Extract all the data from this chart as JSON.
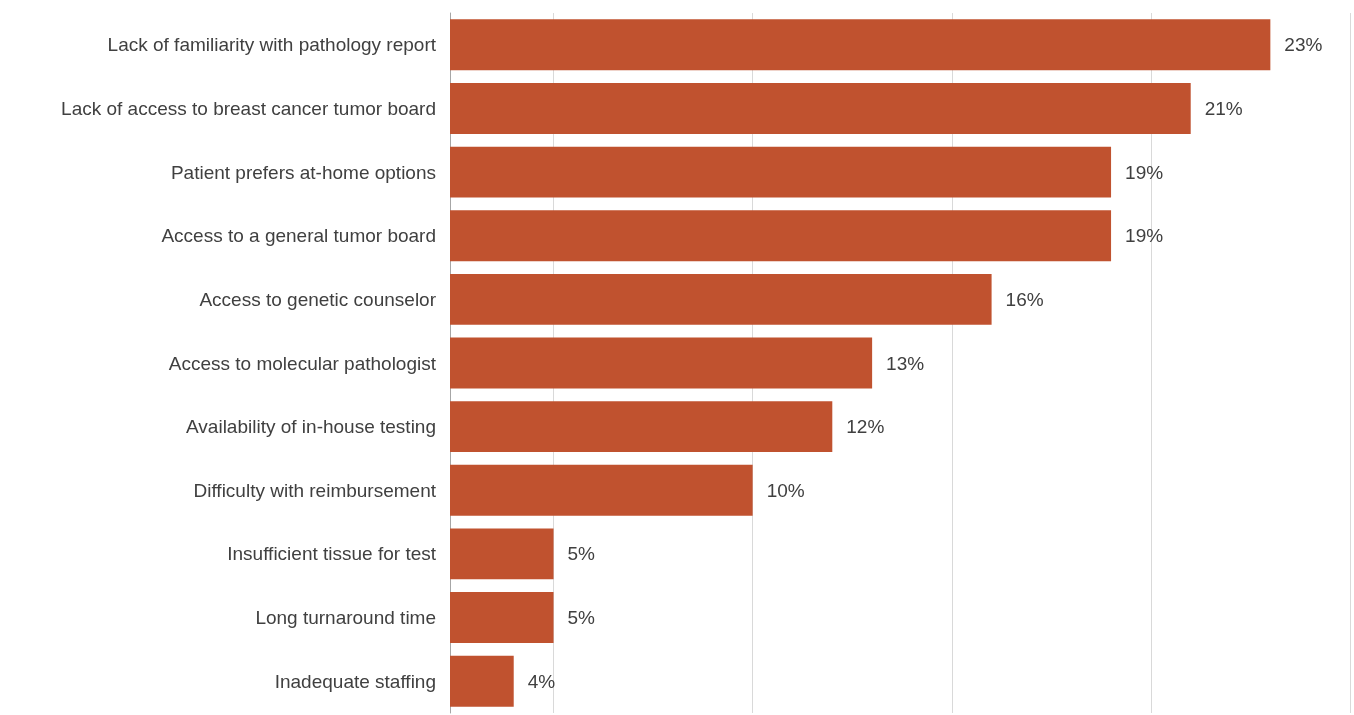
{
  "chart_data": {
    "type": "bar",
    "orientation": "horizontal",
    "categories": [
      "Lack of familiarity with pathology report",
      "Lack of access to breast cancer tumor board",
      "Patient prefers at-home options",
      "Access to a general tumor board",
      "Access to genetic counselor",
      "Access to molecular pathologist",
      "Availability of in-house testing",
      "Difficulty with reimbursement",
      "Insufficient tissue for test",
      "Long turnaround time",
      "Inadequate staffing"
    ],
    "values": [
      23,
      21,
      19,
      19,
      16,
      13,
      12,
      10,
      5,
      5,
      4
    ],
    "value_labels": [
      "23%",
      "21%",
      "19%",
      "19%",
      "16%",
      "13%",
      "12%",
      "10%",
      "5%",
      "5%",
      "4%"
    ],
    "color": "#c0522f",
    "xlim": [
      2.4,
      25
    ],
    "xticks": [
      {
        "value": 5,
        "label": null
      },
      {
        "value": 10,
        "label": null
      },
      {
        "value": 15,
        "label": null
      },
      {
        "value": 20,
        "label": null
      },
      {
        "value": 25,
        "label": null
      }
    ],
    "grid": "x",
    "tick_labels": "y"
  }
}
